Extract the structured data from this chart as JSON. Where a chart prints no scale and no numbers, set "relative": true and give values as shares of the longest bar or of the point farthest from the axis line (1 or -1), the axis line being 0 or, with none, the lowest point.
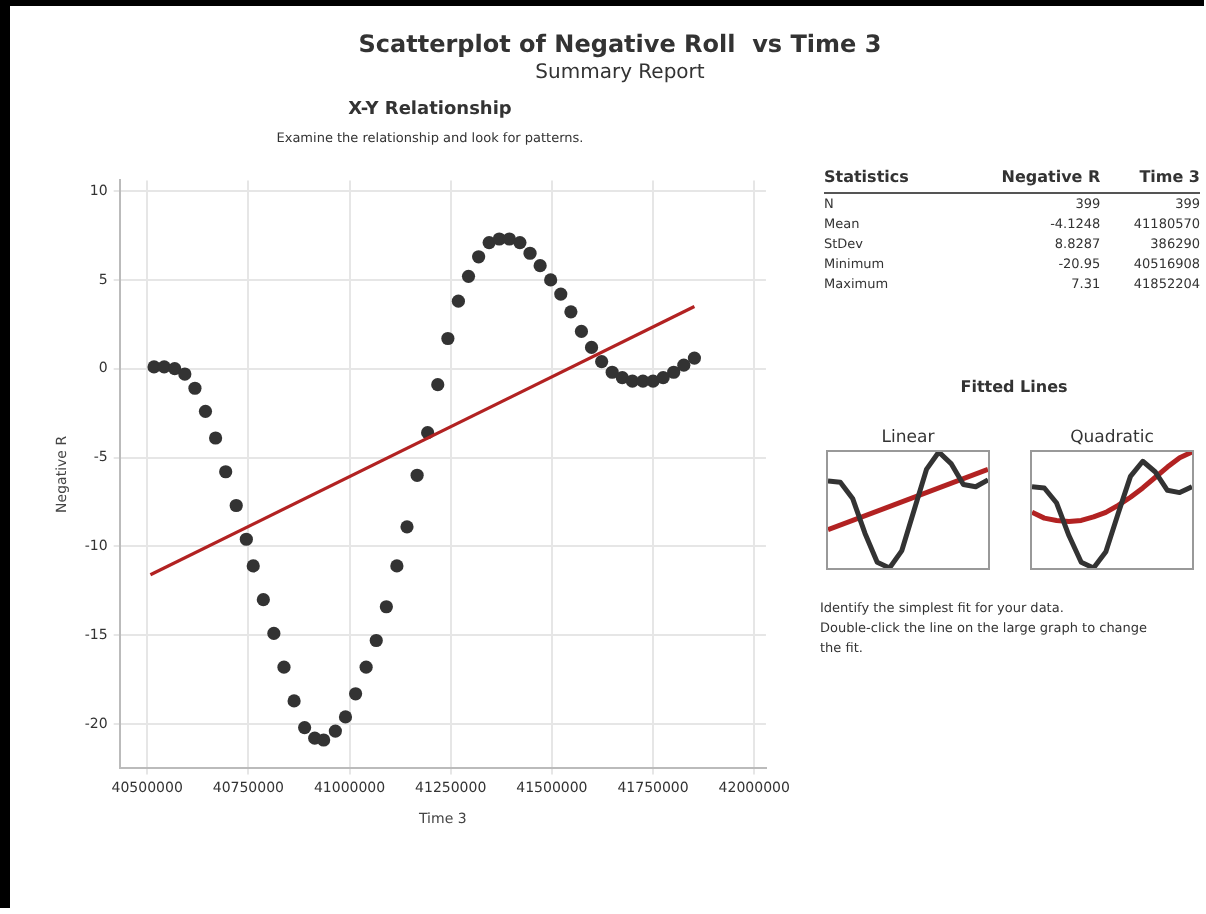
{
  "chart_data": [
    {
      "type": "scatter",
      "title": "Scatterplot of Negative Roll  vs Time 3",
      "subtitle": "Summary Report",
      "annotations": [
        "X-Y Relationship",
        "Examine the relationship and look for patterns."
      ],
      "xlabel": "Time 3",
      "ylabel": "Negative R",
      "marker": "circle",
      "grid": true,
      "xlim": [
        40432000,
        42029000
      ],
      "xticks": [
        40500000,
        40750000,
        41000000,
        41250000,
        41500000,
        41750000,
        42000000
      ],
      "ylim": [
        -22.5,
        10.6
      ],
      "yticks": [
        -20,
        -15,
        -10,
        -5,
        0,
        5,
        10
      ],
      "series": [
        {
          "color": "#333333",
          "x": [
            40516908,
            40542000,
            40568000,
            40593000,
            40618000,
            40644000,
            40669000,
            40694000,
            40720000,
            40745000,
            40762000,
            40787000,
            40813000,
            40838000,
            40863000,
            40889000,
            40914000,
            40936000,
            40965000,
            40990000,
            41015000,
            41041000,
            41066000,
            41091000,
            41117000,
            41142000,
            41167000,
            41193000,
            41218000,
            41243000,
            41269000,
            41294000,
            41319000,
            41345000,
            41370000,
            41395000,
            41421000,
            41446000,
            41471000,
            41497000,
            41522000,
            41547000,
            41573000,
            41598000,
            41623000,
            41649000,
            41674000,
            41699000,
            41725000,
            41750000,
            41775000,
            41801000,
            41826000,
            41852204
          ],
          "values": [
            0.1,
            0.1,
            0.0,
            -0.3,
            -1.1,
            -2.4,
            -3.9,
            -5.8,
            -7.7,
            -9.6,
            -11.1,
            -13.0,
            -14.9,
            -16.8,
            -18.7,
            -20.2,
            -20.8,
            -20.9,
            -20.4,
            -19.6,
            -18.3,
            -16.8,
            -15.3,
            -13.4,
            -11.1,
            -8.9,
            -6.0,
            -3.6,
            -0.9,
            1.7,
            3.8,
            5.2,
            6.3,
            7.1,
            7.3,
            7.3,
            7.1,
            6.5,
            5.8,
            5.0,
            4.2,
            3.2,
            2.1,
            1.2,
            0.4,
            -0.2,
            -0.5,
            -0.7,
            -0.7,
            -0.7,
            -0.5,
            -0.2,
            0.2,
            0.6
          ]
        },
        {
          "type": "line",
          "marker": "none",
          "color": "#b22222",
          "x": [
            40508000,
            41852204
          ],
          "values": [
            -11.6,
            3.5
          ]
        }
      ]
    },
    {
      "type": "other",
      "annotations": [
        "Statistics",
        "Negative R",
        "Time 3",
        "N",
        "399",
        "399",
        "Mean",
        "-4.1248",
        "41180570",
        "StDev",
        "8.8287",
        "386290",
        "Minimum",
        "-20.95",
        "40516908",
        "Maximum",
        "7.31",
        "41852204",
        "Fitted Lines",
        "Identify the simplest fit for your data.",
        "Double-click the line on the large graph to change the fit."
      ]
    },
    {
      "type": "line",
      "title": "Linear",
      "relative": true,
      "categories": [
        null,
        null,
        null,
        null,
        null,
        null,
        null,
        null,
        null,
        null,
        null,
        null,
        null,
        null
      ],
      "series": [
        {
          "color": "#333333",
          "values": [
            0.75,
            0.74,
            0.6,
            0.3,
            0.05,
            0.0,
            0.15,
            0.5,
            0.85,
            1.0,
            0.9,
            0.72,
            0.7,
            0.76
          ]
        },
        {
          "color": "#b22222",
          "values": [
            0.33,
            null,
            null,
            null,
            null,
            null,
            null,
            null,
            null,
            null,
            null,
            null,
            null,
            0.85
          ]
        }
      ]
    },
    {
      "type": "line",
      "title": "Quadratic",
      "relative": true,
      "categories": [
        null,
        null,
        null,
        null,
        null,
        null,
        null,
        null,
        null,
        null,
        null,
        null,
        null,
        null
      ],
      "series": [
        {
          "color": "#333333",
          "values": [
            0.7,
            0.69,
            0.56,
            0.28,
            0.05,
            0.0,
            0.14,
            0.47,
            0.79,
            0.92,
            0.83,
            0.67,
            0.65,
            0.7
          ]
        },
        {
          "color": "#b22222",
          "values": [
            0.48,
            0.43,
            0.41,
            0.4,
            0.41,
            0.44,
            0.48,
            0.54,
            0.61,
            0.69,
            0.78,
            0.87,
            0.95,
            1.0
          ]
        }
      ]
    }
  ]
}
